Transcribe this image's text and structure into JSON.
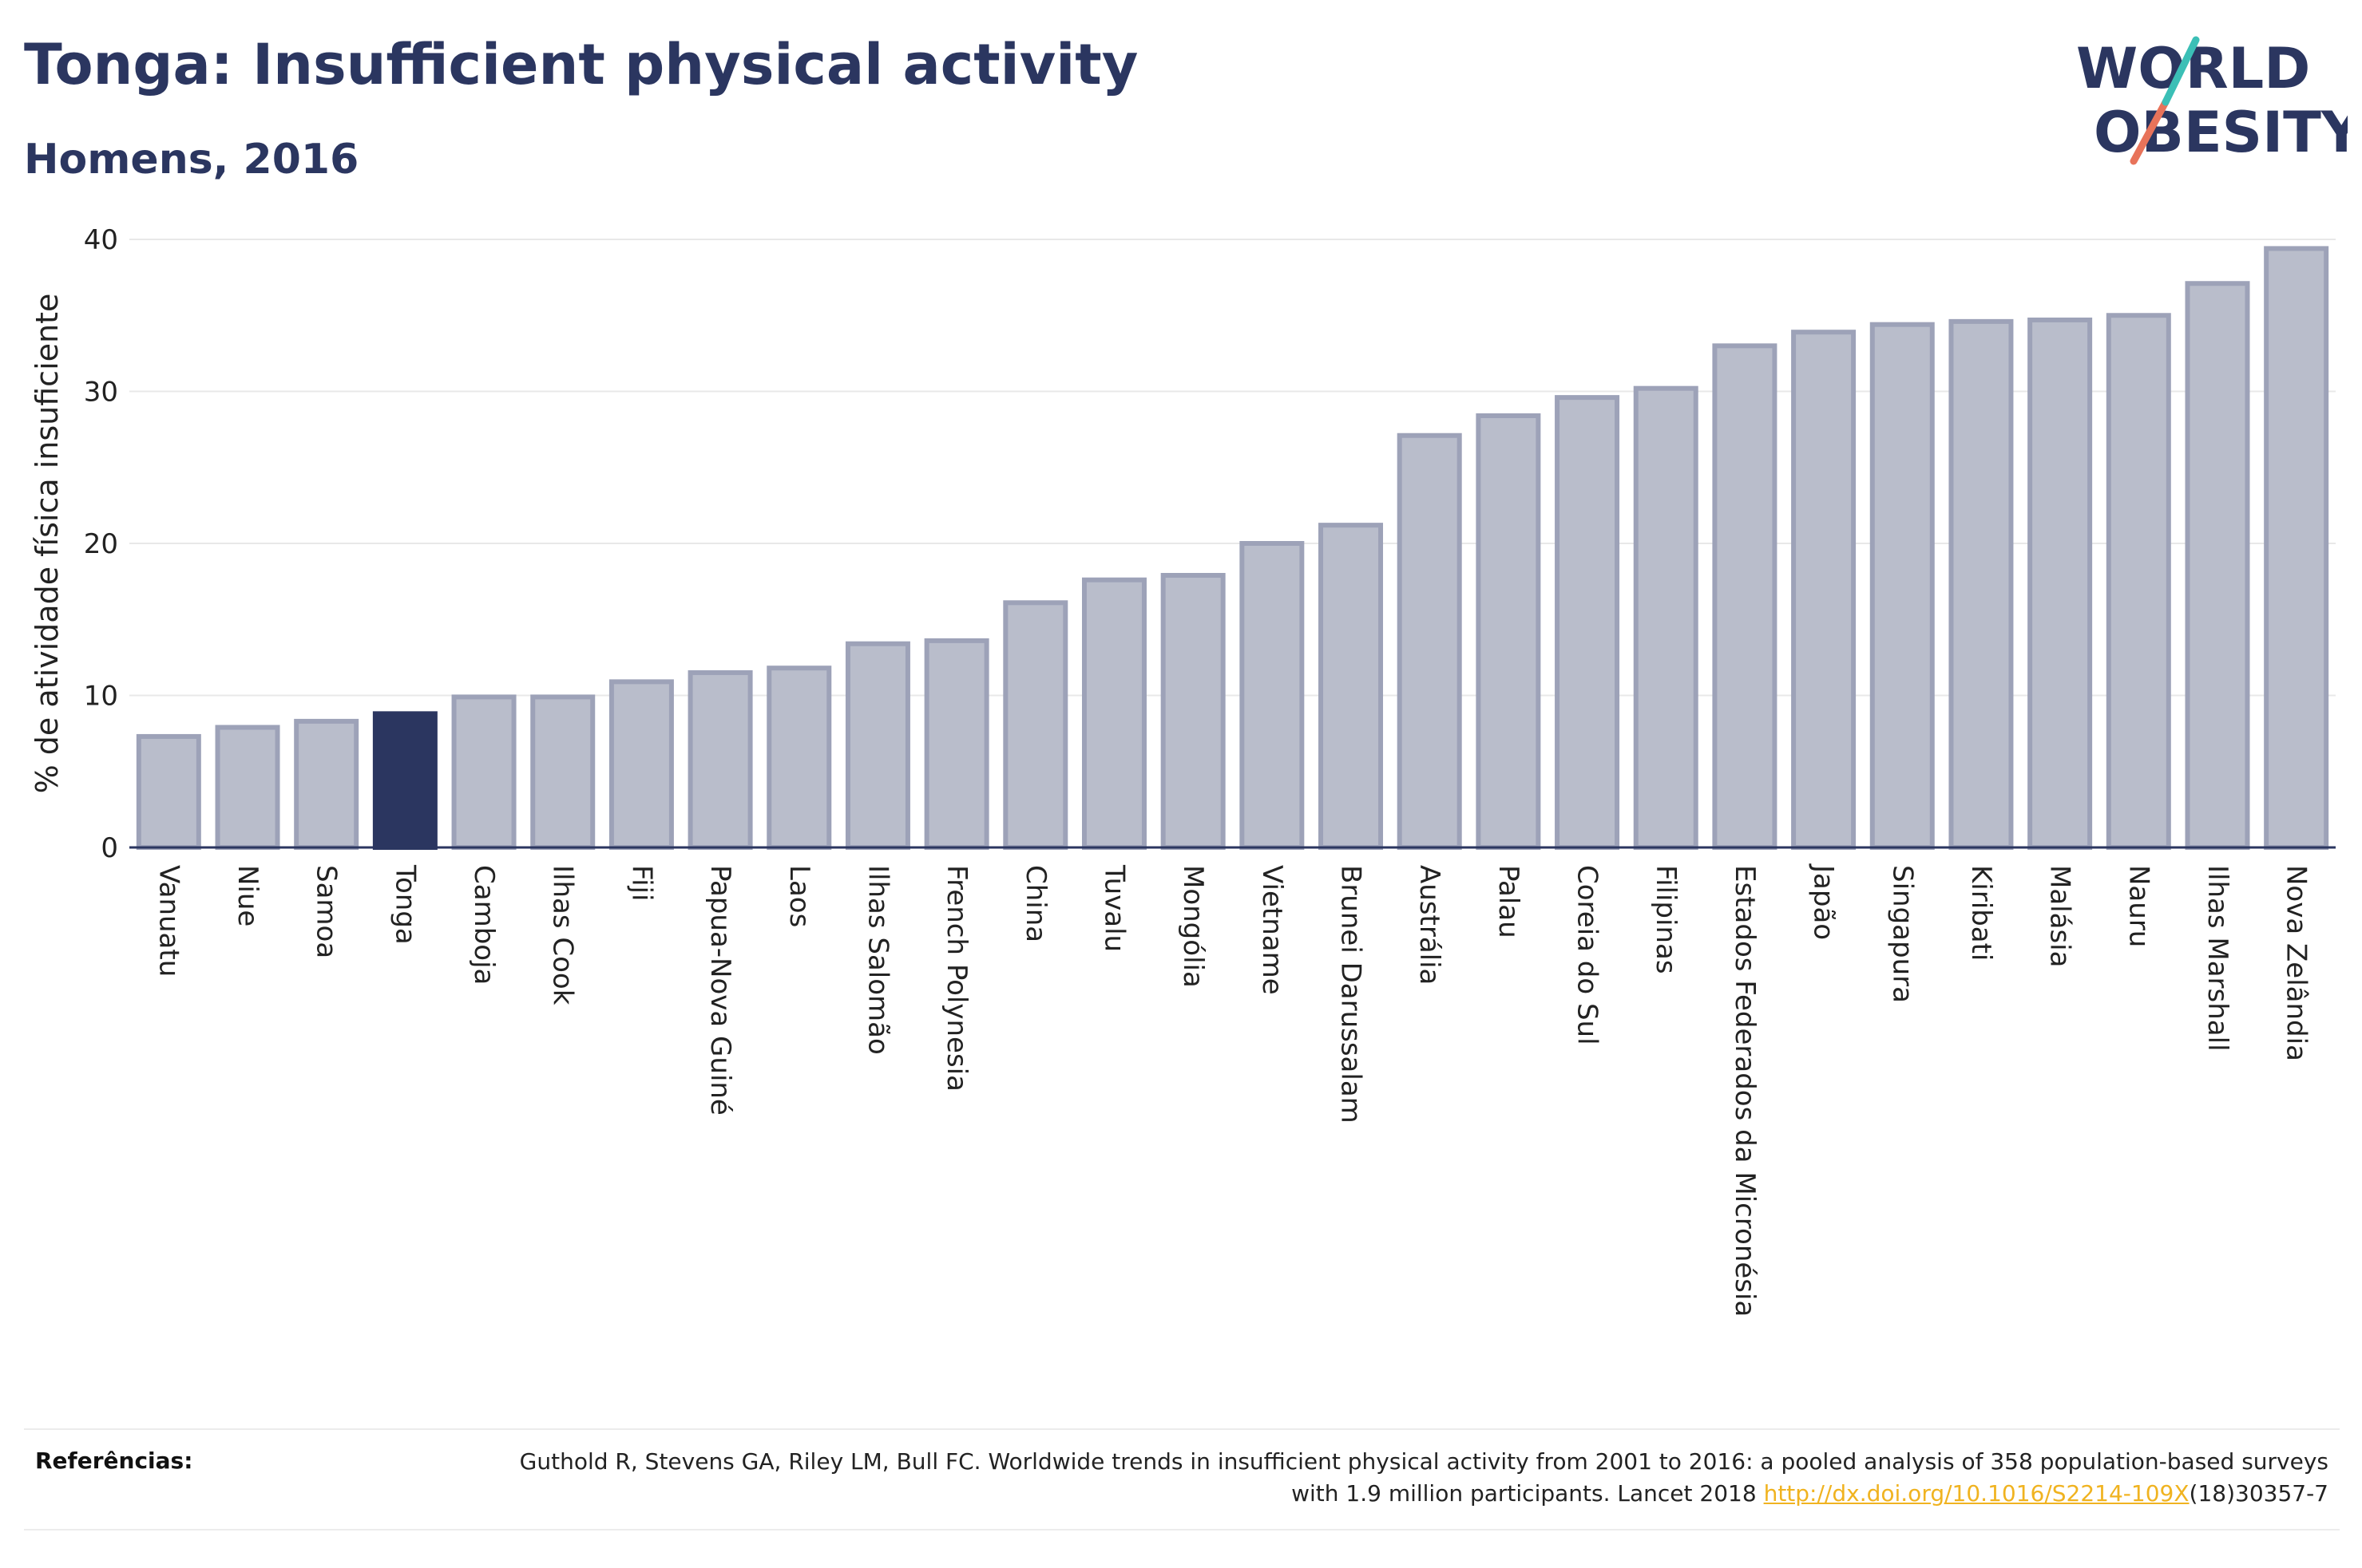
{
  "title": "Tonga: Insufficient physical activity",
  "subtitle": "Homens, 2016",
  "logo": {
    "line1": "WORLD",
    "line2": "OBESITY"
  },
  "colors": {
    "default_bar": "#b9bdcb",
    "bar_border": "#9da2b8",
    "highlight_bar": "#2b3660",
    "grid": "#e8e8e8",
    "link": "#f0b320"
  },
  "chart_data": {
    "type": "bar",
    "ylabel": "% de atividade física insuficiente",
    "ylim": [
      0,
      40
    ],
    "yticks": [
      0,
      10,
      20,
      30,
      40
    ],
    "highlight": "Tonga",
    "categories": [
      "Vanuatu",
      "Niue",
      "Samoa",
      "Tonga",
      "Camboja",
      "Ilhas Cook",
      "Fiji",
      "Papua-Nova Guiné",
      "Laos",
      "Ilhas Salomão",
      "French Polynesia",
      "China",
      "Tuvalu",
      "Mongólia",
      "Vietname",
      "Brunei Darussalam",
      "Austrália",
      "Palau",
      "Coreia do Sul",
      "Filipinas",
      "Estados Federados da Micronésia",
      "Japão",
      "Singapura",
      "Kiribati",
      "Malásia",
      "Nauru",
      "Ilhas Marshall",
      "Nova Zelândia"
    ],
    "values": [
      7.3,
      7.9,
      8.3,
      8.8,
      9.9,
      9.9,
      10.9,
      11.5,
      11.8,
      13.4,
      13.6,
      16.1,
      17.6,
      17.9,
      20.0,
      21.2,
      27.1,
      28.4,
      29.6,
      30.2,
      33.0,
      33.9,
      34.4,
      34.6,
      34.7,
      35.0,
      37.1,
      39.4
    ]
  },
  "footer": {
    "label": "Referências:",
    "text_before": "Guthold R, Stevens GA, Riley LM, Bull FC. Worldwide trends in insufficient physical activity from 2001 to 2016: a pooled analysis of 358 population-based surveys with 1.9 million participants. Lancet 2018 ",
    "link": "http://dx.doi.org/10.1016/S2214-109X",
    "text_after": "(18)30357-7"
  }
}
